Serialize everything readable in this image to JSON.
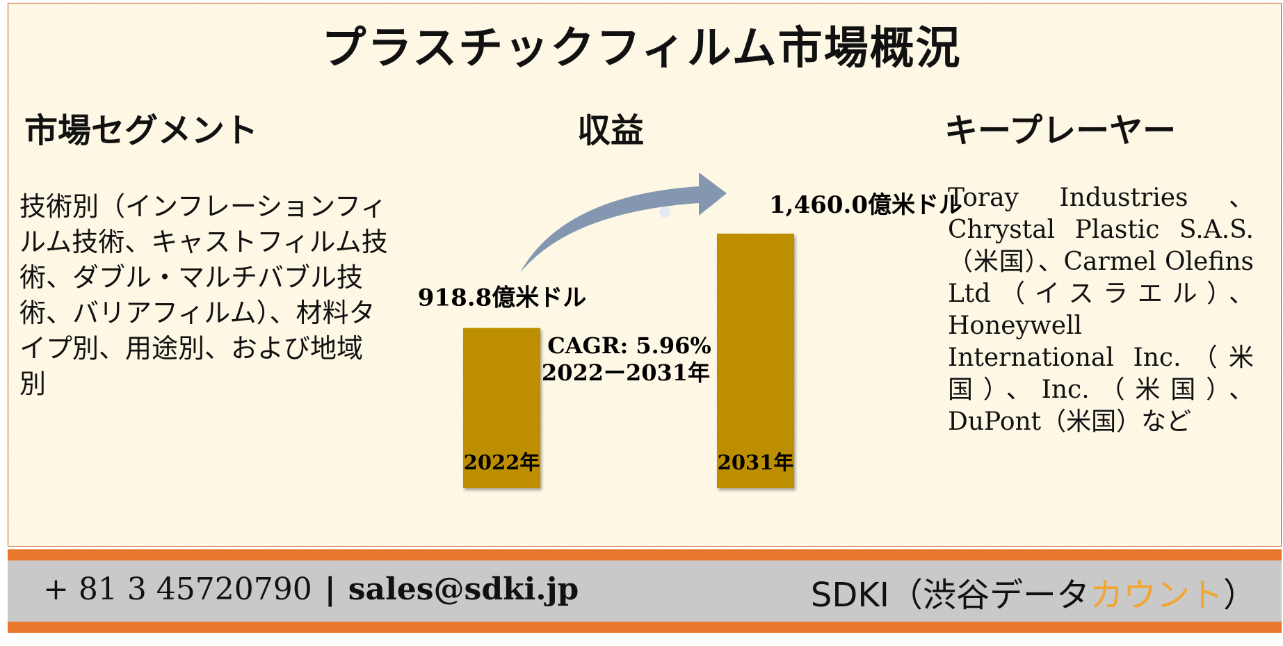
{
  "title": "プラスチックフィルム市場概況",
  "segments": {
    "heading": "市場セグメント",
    "text": "技術別（インフレーションフィルム技術、キャストフィルム技術、ダブル・マルチバブル技術、バリアフィルム）、材料タイプ別、用途別、および地域別"
  },
  "revenue": {
    "heading": "収益",
    "cagr_label": "CAGR: 5.96%",
    "period_label": "2022ー2031年"
  },
  "key_players": {
    "heading": "キープレーヤー",
    "text": "Toray Industries 、Chrystal Plastic S.A.S.（米国）、Carmel Olefins Ltd（イスラエル）、Honeywell International Inc.（米国）、Inc.（米国）、DuPont（米国）など"
  },
  "chart_data": {
    "type": "bar",
    "categories": [
      "2022年",
      "2031年"
    ],
    "values": [
      918.8,
      1460.0
    ],
    "value_labels": [
      "918.8億米ドル",
      "1,460.0億米ドル"
    ],
    "unit": "億米ドル",
    "bar_color": "#bd8f00",
    "arrow_color": "#8497b0",
    "annotations": [
      "CAGR: 5.96%",
      "2022ー2031年"
    ]
  },
  "footer": {
    "phone": "+ 81 3 45720790",
    "separator": "|",
    "email": "sales@sdki.jp",
    "brand_prefix": "SDKI（渋谷データ",
    "brand_accent": "カウント",
    "brand_suffix": "）",
    "accent_color": "#f2a530"
  }
}
